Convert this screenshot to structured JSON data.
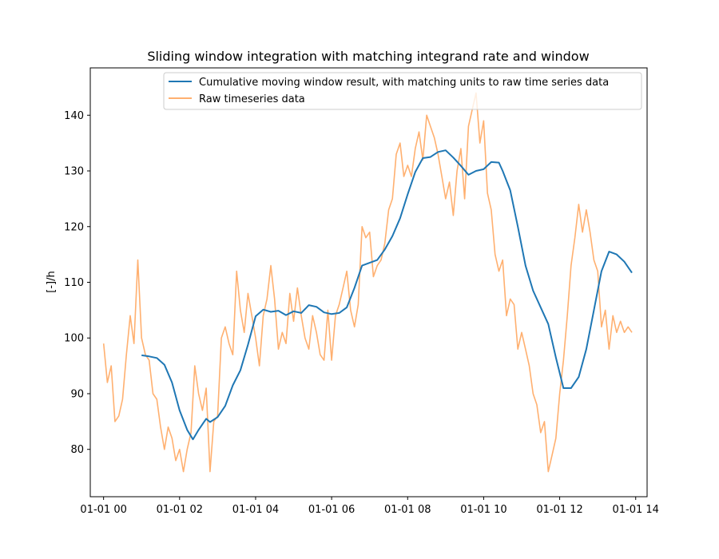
{
  "chart_data": {
    "type": "line",
    "title": "Sliding window integration with matching integrand rate and window",
    "xlabel": "",
    "ylabel": "[-]/h",
    "xlim": [
      -0.35,
      14.3
    ],
    "ylim": [
      71.5,
      148.5
    ],
    "x_ticks": [
      {
        "value": 0,
        "label": "01-01 00"
      },
      {
        "value": 2,
        "label": "01-01 02"
      },
      {
        "value": 4,
        "label": "01-01 04"
      },
      {
        "value": 6,
        "label": "01-01 06"
      },
      {
        "value": 8,
        "label": "01-01 08"
      },
      {
        "value": 10,
        "label": "01-01 10"
      },
      {
        "value": 12,
        "label": "01-01 12"
      },
      {
        "value": 14,
        "label": "01-01 14"
      }
    ],
    "y_ticks": [
      80,
      90,
      100,
      110,
      120,
      130,
      140
    ],
    "grid": false,
    "legend_position": "upper-right",
    "series": [
      {
        "name": "Cumulative moving window result, with matching units to raw time series data",
        "color": "#1f77b4",
        "x": [
          1.0,
          1.2,
          1.4,
          1.6,
          1.8,
          2.0,
          2.2,
          2.35,
          2.5,
          2.7,
          2.8,
          3.0,
          3.2,
          3.4,
          3.6,
          3.8,
          4.0,
          4.2,
          4.4,
          4.6,
          4.8,
          5.0,
          5.2,
          5.4,
          5.6,
          5.8,
          6.0,
          6.2,
          6.4,
          6.6,
          6.8,
          7.0,
          7.2,
          7.4,
          7.6,
          7.8,
          8.0,
          8.2,
          8.4,
          8.6,
          8.8,
          9.0,
          9.2,
          9.4,
          9.6,
          9.8,
          10.0,
          10.2,
          10.4,
          10.5,
          10.7,
          10.9,
          11.1,
          11.3,
          11.5,
          11.7,
          11.9,
          12.1,
          12.3,
          12.5,
          12.7,
          12.9,
          13.1,
          13.3,
          13.5,
          13.7,
          13.9
        ],
        "y": [
          96.9,
          96.7,
          96.4,
          95.2,
          92.0,
          87.0,
          83.5,
          81.8,
          83.5,
          85.5,
          84.9,
          85.8,
          87.8,
          91.5,
          94.2,
          98.8,
          103.9,
          105.1,
          104.7,
          104.9,
          104.1,
          104.8,
          104.5,
          105.9,
          105.6,
          104.6,
          104.3,
          104.5,
          105.5,
          109.0,
          113.0,
          113.5,
          114.0,
          115.9,
          118.3,
          121.5,
          125.8,
          129.8,
          132.3,
          132.5,
          133.4,
          133.7,
          132.4,
          130.9,
          129.3,
          130.0,
          130.3,
          131.6,
          131.5,
          130.0,
          126.5,
          120.0,
          113.0,
          108.5,
          105.5,
          102.5,
          96.5,
          91.0,
          91.0,
          93.0,
          98.0,
          105.0,
          112.0,
          115.5,
          115.0,
          113.7,
          111.7
        ]
      },
      {
        "name": "Raw timeseries data",
        "color": "#ffb070",
        "x": [
          0.0,
          0.1,
          0.2,
          0.3,
          0.4,
          0.5,
          0.6,
          0.7,
          0.8,
          0.9,
          1.0,
          1.1,
          1.2,
          1.3,
          1.4,
          1.5,
          1.6,
          1.7,
          1.8,
          1.9,
          2.0,
          2.1,
          2.2,
          2.3,
          2.4,
          2.5,
          2.6,
          2.7,
          2.8,
          2.9,
          3.0,
          3.1,
          3.2,
          3.3,
          3.4,
          3.5,
          3.6,
          3.7,
          3.8,
          3.9,
          4.0,
          4.1,
          4.2,
          4.3,
          4.4,
          4.5,
          4.6,
          4.7,
          4.8,
          4.9,
          5.0,
          5.1,
          5.2,
          5.3,
          5.4,
          5.5,
          5.6,
          5.7,
          5.8,
          5.9,
          6.0,
          6.1,
          6.2,
          6.3,
          6.4,
          6.5,
          6.6,
          6.7,
          6.8,
          6.9,
          7.0,
          7.1,
          7.2,
          7.3,
          7.4,
          7.5,
          7.6,
          7.7,
          7.8,
          7.9,
          8.0,
          8.1,
          8.2,
          8.3,
          8.4,
          8.5,
          8.6,
          8.7,
          8.8,
          8.9,
          9.0,
          9.1,
          9.2,
          9.3,
          9.4,
          9.5,
          9.6,
          9.7,
          9.8,
          9.9,
          10.0,
          10.1,
          10.2,
          10.3,
          10.4,
          10.5,
          10.6,
          10.7,
          10.8,
          10.9,
          11.0,
          11.1,
          11.2,
          11.3,
          11.4,
          11.5,
          11.6,
          11.7,
          11.8,
          11.9,
          12.0,
          12.1,
          12.2,
          12.3,
          12.4,
          12.5,
          12.6,
          12.7,
          12.8,
          12.9,
          13.0,
          13.1,
          13.2,
          13.3,
          13.4,
          13.5,
          13.6,
          13.7,
          13.8,
          13.9
        ],
        "y": [
          99,
          92,
          95,
          85,
          86,
          89,
          97,
          104,
          99,
          114,
          100,
          97,
          96,
          90,
          89,
          84,
          80,
          84,
          82,
          78,
          80,
          76,
          80,
          83,
          95,
          90,
          87,
          91,
          76,
          85,
          86,
          100,
          102,
          99,
          97,
          112,
          105,
          101,
          108,
          104,
          100,
          95,
          104,
          107,
          113,
          107,
          98,
          101,
          99,
          108,
          103,
          109,
          104,
          100,
          98,
          104,
          101,
          97,
          96,
          105,
          96,
          104,
          106,
          109,
          112,
          105,
          102,
          106,
          120,
          118,
          119,
          111,
          113,
          114,
          117,
          123,
          125,
          133,
          135,
          129,
          131,
          129,
          134,
          137,
          132,
          140,
          138,
          136,
          133,
          129,
          125,
          128,
          122,
          130,
          134,
          125,
          138,
          141,
          144,
          135,
          139,
          126,
          123,
          115,
          112,
          114,
          104,
          107,
          106,
          98,
          101,
          98,
          95,
          90,
          88,
          83,
          85,
          76,
          79,
          82,
          90,
          96,
          104,
          113,
          118,
          124,
          119,
          123,
          119,
          114,
          112,
          102,
          105,
          98,
          104,
          101,
          103,
          101,
          102,
          101
        ]
      }
    ]
  }
}
